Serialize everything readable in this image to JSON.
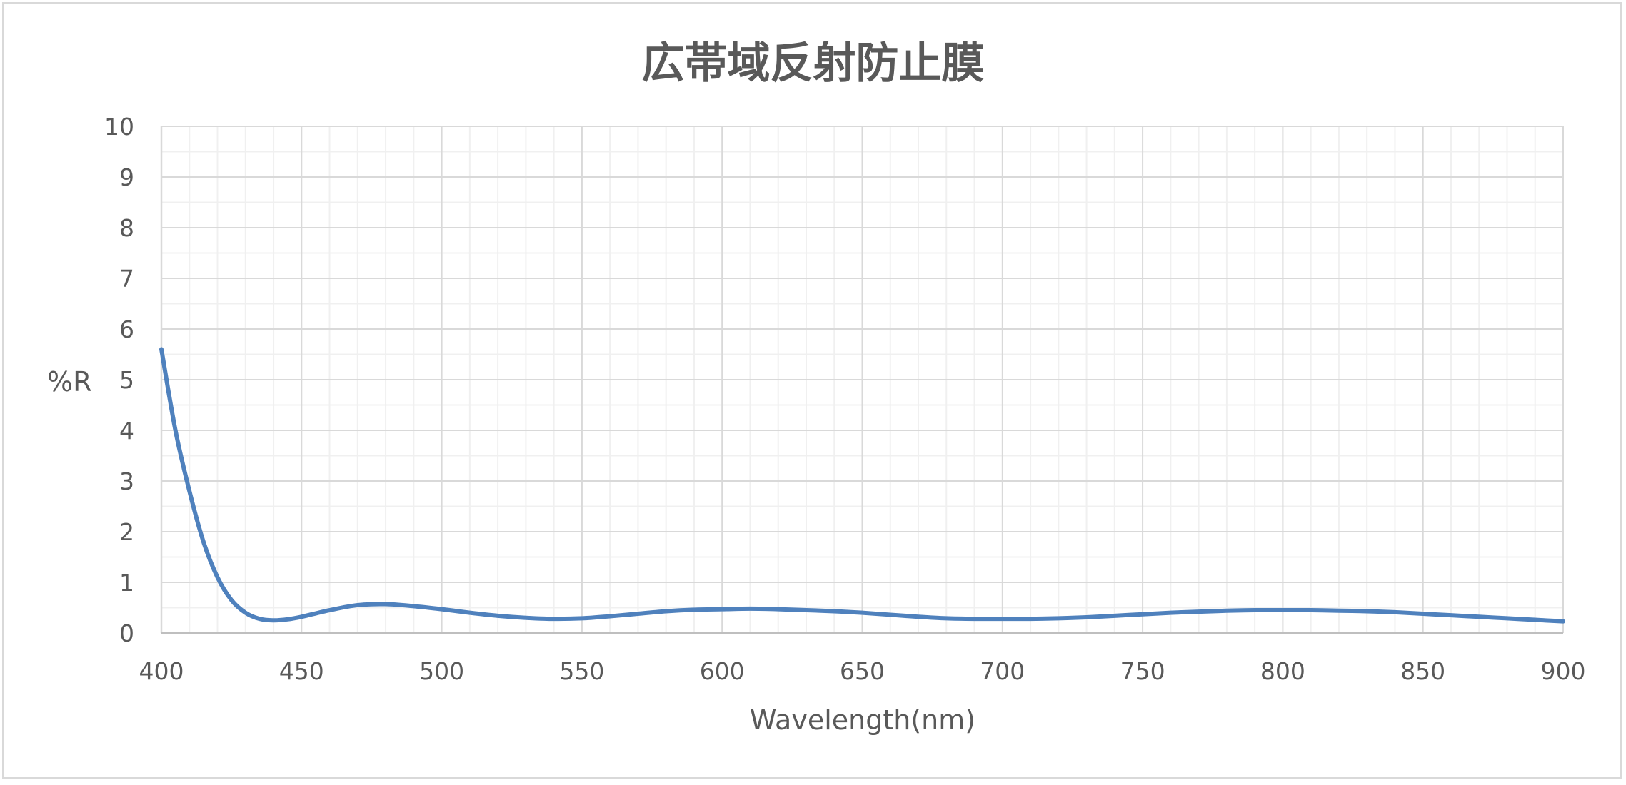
{
  "chart_data": {
    "type": "line",
    "title": "広帯域反射防止膜",
    "xlabel": "Wavelength(nm)",
    "ylabel": "%R",
    "xlim": [
      400,
      900
    ],
    "ylim": [
      0,
      10
    ],
    "x_ticks": [
      "400",
      "450",
      "500",
      "550",
      "600",
      "650",
      "700",
      "750",
      "800",
      "850",
      "900"
    ],
    "y_ticks": [
      "0",
      "1",
      "2",
      "3",
      "4",
      "5",
      "6",
      "7",
      "8",
      "9",
      "10"
    ],
    "grid": true,
    "legend": "none",
    "series": [
      {
        "color": "#4f81bd",
        "x": [
          400,
          405,
          410,
          415,
          420,
          425,
          430,
          435,
          440,
          445,
          450,
          460,
          470,
          480,
          490,
          500,
          510,
          520,
          530,
          540,
          550,
          560,
          570,
          580,
          590,
          600,
          610,
          620,
          630,
          640,
          650,
          660,
          670,
          680,
          690,
          700,
          710,
          720,
          730,
          740,
          750,
          760,
          770,
          780,
          790,
          800,
          810,
          820,
          830,
          840,
          850,
          860,
          870,
          880,
          890,
          900
        ],
        "y": [
          5.6,
          4.0,
          2.8,
          1.8,
          1.1,
          0.65,
          0.4,
          0.28,
          0.25,
          0.27,
          0.32,
          0.45,
          0.55,
          0.57,
          0.53,
          0.47,
          0.4,
          0.34,
          0.3,
          0.28,
          0.29,
          0.33,
          0.38,
          0.43,
          0.46,
          0.47,
          0.48,
          0.47,
          0.45,
          0.43,
          0.4,
          0.36,
          0.32,
          0.29,
          0.28,
          0.28,
          0.28,
          0.29,
          0.31,
          0.34,
          0.37,
          0.4,
          0.42,
          0.44,
          0.45,
          0.45,
          0.45,
          0.44,
          0.43,
          0.41,
          0.38,
          0.35,
          0.32,
          0.29,
          0.26,
          0.23
        ]
      }
    ]
  }
}
